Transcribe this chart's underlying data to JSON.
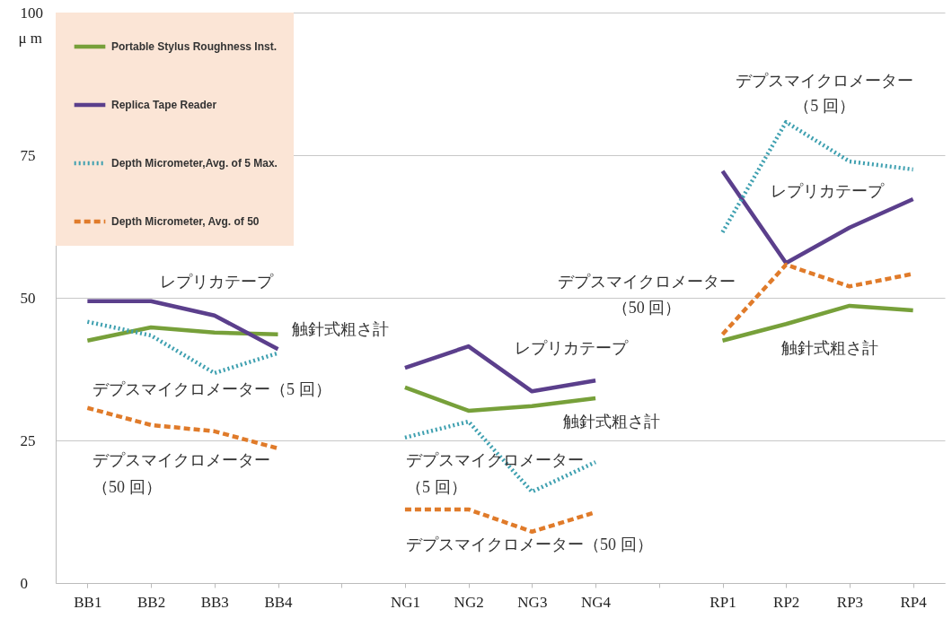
{
  "chart_data": {
    "type": "line",
    "ylabel": "μ m",
    "categories": [
      "BB1",
      "BB2",
      "BB3",
      "BB4",
      null,
      "NG1",
      "NG2",
      "NG3",
      "NG4",
      null,
      "RP1",
      "RP2",
      "RP3",
      "RP4"
    ],
    "series": [
      {
        "name": "Portable Stylus Roughness Inst.",
        "color": "#77a03a",
        "line_style": "solid",
        "values": [
          42.5,
          44.8,
          43.9,
          43.6,
          null,
          34.3,
          30.2,
          31,
          32.4,
          null,
          42.5,
          45.4,
          48.6,
          47.8
        ]
      },
      {
        "name": "Replica Tape Reader",
        "color": "#5b3f8c",
        "line_style": "solid",
        "values": [
          49.4,
          49.4,
          46.9,
          41,
          null,
          37.7,
          41.5,
          33.6,
          35.5,
          null,
          72.2,
          56.1,
          62.3,
          67.3
        ]
      },
      {
        "name": "Depth Micrometer,Avg. of 5 Max.",
        "color": "#3fa0b0",
        "line_style": "dotted",
        "values": [
          45.8,
          43.4,
          36.8,
          40.3,
          null,
          25.5,
          28.3,
          16,
          21.2,
          null,
          61.5,
          80.8,
          73.9,
          72.5
        ]
      },
      {
        "name": "Depth Micrometer, Avg. of 50",
        "color": "#e07b2a",
        "line_style": "dashed",
        "values": [
          30.7,
          27.7,
          26.6,
          23.6,
          null,
          12.9,
          12.9,
          9,
          12.4,
          null,
          43.6,
          55.8,
          52,
          54.2
        ]
      }
    ],
    "ylim": [
      0,
      100
    ],
    "yticks": [
      0,
      25,
      50,
      75,
      100
    ],
    "grid": "y",
    "legend": "top left",
    "marker": "none",
    "annotations": [
      "レプリカテープ",
      "触針式粗さ計",
      "デプスマイクロメーター（5 回）",
      "デプスマイクロメーター",
      "（50 回）",
      "レプリカテープ",
      "触針式粗さ計",
      "デプスマイクロメーター",
      "（5 回）",
      "デプスマイクロメーター（50 回）",
      "デプスマイクロメーター",
      "（50 回）",
      "デプスマイクロメーター",
      "（5 回）",
      "レプリカテープ",
      "触針式粗さ計"
    ]
  }
}
